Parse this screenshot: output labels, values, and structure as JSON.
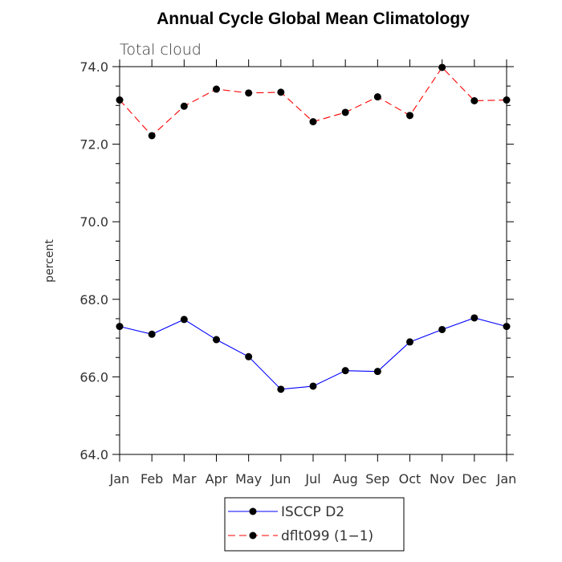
{
  "chart_data": {
    "type": "line",
    "title": "Annual Cycle Global Mean Climatology",
    "subtitle": "Total cloud",
    "xlabel": "",
    "ylabel": "percent",
    "categories": [
      "Jan",
      "Feb",
      "Mar",
      "Apr",
      "May",
      "Jun",
      "Jul",
      "Aug",
      "Sep",
      "Oct",
      "Nov",
      "Dec",
      "Jan"
    ],
    "ylim": [
      64.0,
      74.0
    ],
    "yticks": [
      "64.0",
      "66.0",
      "68.0",
      "70.0",
      "72.0",
      "74.0"
    ],
    "grid": false,
    "legend_position": "bottom",
    "series": [
      {
        "name": "ISCCP D2",
        "color": "#0000ff",
        "line_style": "solid",
        "marker": "filled-circle",
        "values": [
          67.3,
          67.1,
          67.48,
          66.96,
          66.52,
          65.68,
          65.76,
          66.16,
          66.14,
          66.9,
          67.22,
          67.52,
          67.3
        ]
      },
      {
        "name": "dflt099 (1−1)",
        "color": "#ff0000",
        "line_style": "dashed",
        "marker": "filled-circle",
        "values": [
          73.14,
          72.22,
          72.98,
          73.42,
          73.32,
          73.34,
          72.58,
          72.82,
          73.22,
          72.74,
          73.98,
          73.12,
          73.14
        ]
      }
    ]
  }
}
